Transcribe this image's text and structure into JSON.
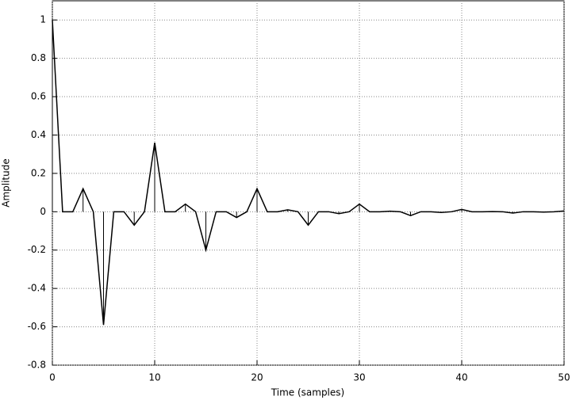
{
  "chart_data": {
    "type": "stem",
    "xlabel": "Time (samples)",
    "ylabel": "Amplitude",
    "x": [
      0,
      1,
      2,
      3,
      4,
      5,
      6,
      7,
      8,
      9,
      10,
      11,
      12,
      13,
      14,
      15,
      16,
      17,
      18,
      19,
      20,
      21,
      22,
      23,
      24,
      25,
      26,
      27,
      28,
      29,
      30,
      31,
      32,
      33,
      34,
      35,
      36,
      37,
      38,
      39,
      40,
      41,
      42,
      43,
      44,
      45,
      46,
      47,
      48,
      49,
      50
    ],
    "series": [
      {
        "color": "#000000",
        "values": [
          1,
          0,
          0,
          0.12,
          0,
          -0.59,
          0,
          0,
          -0.07,
          0,
          0.36,
          0,
          0,
          0.04,
          0,
          -0.2,
          0,
          0,
          -0.03,
          0,
          0.12,
          0,
          0,
          0.01,
          0,
          -0.07,
          0,
          0,
          -0.01,
          0,
          0.04,
          0,
          0,
          0.003,
          0,
          -0.02,
          0,
          0,
          -0.004,
          0,
          0.012,
          0,
          0,
          0.001,
          0,
          -0.007,
          0,
          0,
          -0.002,
          0,
          0.004
        ]
      }
    ],
    "xlim": [
      0,
      50
    ],
    "xticks": [
      0,
      10,
      20,
      30,
      40,
      50
    ],
    "ylim": [
      -0.8,
      1.1
    ],
    "yticks": [
      -0.8,
      -0.6,
      -0.4,
      -0.2,
      0,
      0.2,
      0.4,
      0.6,
      0.8,
      1
    ],
    "grid": true
  }
}
